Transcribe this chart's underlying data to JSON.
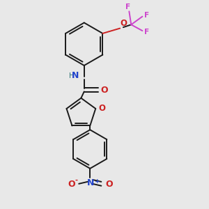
{
  "background_color": "#e8e8e8",
  "bond_color": "#1a1a1a",
  "N_color": "#2244cc",
  "O_color": "#cc2222",
  "F_color": "#cc44cc",
  "H_color": "#337777",
  "fig_w": 3.0,
  "fig_h": 3.0,
  "dpi": 100,
  "xlim": [
    0.0,
    1.0
  ],
  "ylim": [
    0.0,
    1.0
  ]
}
